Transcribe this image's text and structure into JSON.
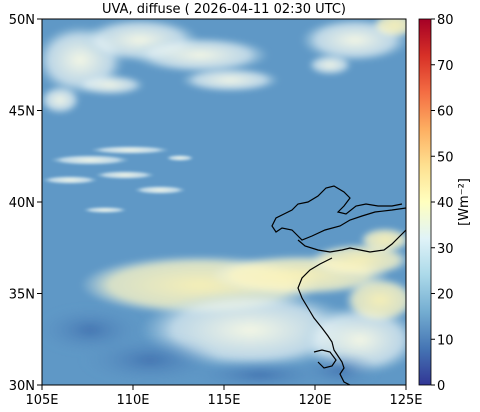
{
  "title": "UVA, diffuse ( 2026-04-11 02:30 UTC)",
  "map": {
    "lon_range": [
      105,
      125
    ],
    "lat_range": [
      30,
      50
    ],
    "x_ticks": [
      {
        "value": 105,
        "label": "105E"
      },
      {
        "value": 110,
        "label": "110E"
      },
      {
        "value": 115,
        "label": "115E"
      },
      {
        "value": 120,
        "label": "120E"
      },
      {
        "value": 125,
        "label": "125E"
      }
    ],
    "y_ticks": [
      {
        "value": 30,
        "label": "30N"
      },
      {
        "value": 35,
        "label": "35N"
      },
      {
        "value": 40,
        "label": "40N"
      },
      {
        "value": 45,
        "label": "45N"
      },
      {
        "value": 50,
        "label": "50N"
      }
    ],
    "background_color": "#5f98c6",
    "coastline_color": "#000000"
  },
  "colorbar": {
    "label": "[Wm⁻²]",
    "range": [
      0,
      80
    ],
    "ticks": [
      {
        "value": 0,
        "label": "0"
      },
      {
        "value": 10,
        "label": "10"
      },
      {
        "value": 20,
        "label": "20"
      },
      {
        "value": 30,
        "label": "30"
      },
      {
        "value": 40,
        "label": "40"
      },
      {
        "value": 50,
        "label": "50"
      },
      {
        "value": 60,
        "label": "60"
      },
      {
        "value": 70,
        "label": "70"
      },
      {
        "value": 80,
        "label": "80"
      }
    ],
    "colormap": [
      "#313695",
      "#4575b4",
      "#74add1",
      "#abd9e9",
      "#e0f3f8",
      "#ffffbf",
      "#fee090",
      "#fdae61",
      "#f46d43",
      "#d73027",
      "#a50026"
    ]
  }
}
